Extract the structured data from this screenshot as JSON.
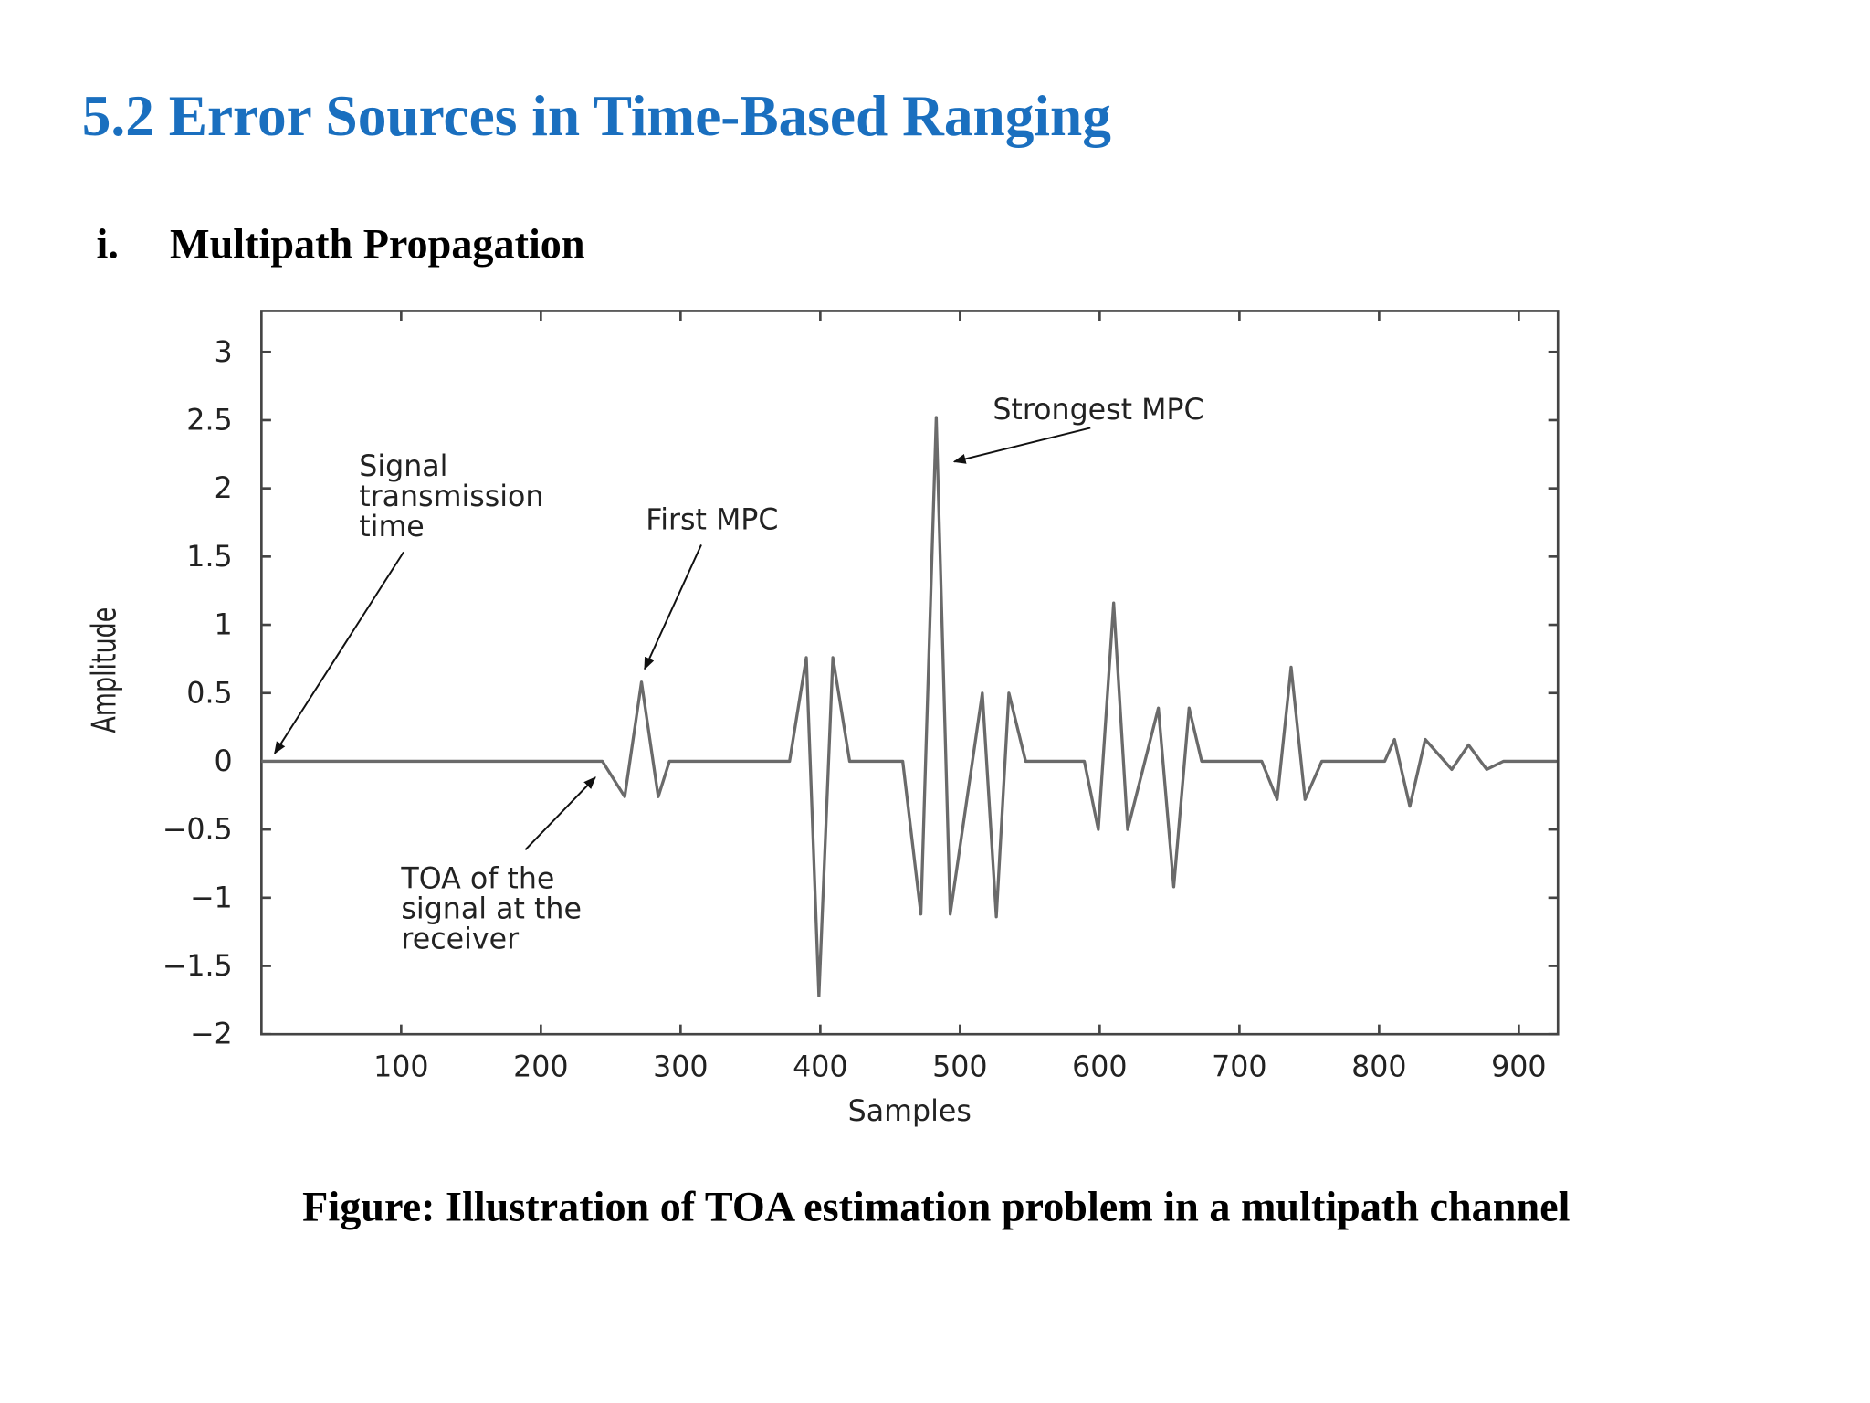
{
  "heading": "5.2 Error Sources in Time-Based Ranging",
  "subheading": {
    "number": "i.",
    "text": "Multipath Propagation"
  },
  "chart_data": {
    "type": "line",
    "ylabel": "Amplitude",
    "xlabel": "Samples",
    "x": [
      0,
      244,
      260,
      272,
      284,
      292,
      378,
      390,
      399,
      409,
      421,
      459,
      472,
      483,
      493,
      516,
      526,
      535,
      547,
      589,
      599,
      610,
      620,
      642,
      653,
      664,
      673,
      716,
      727,
      737,
      747,
      759,
      804,
      811,
      822,
      833,
      852,
      864,
      877,
      889,
      927
    ],
    "series": [
      {
        "color": "#6a6a6a",
        "values": [
          0,
          0,
          -0.26,
          0.58,
          -0.26,
          0,
          0,
          0.76,
          -1.72,
          0.76,
          0,
          0,
          -1.12,
          2.52,
          -1.12,
          0.5,
          -1.14,
          0.5,
          0,
          0,
          -0.5,
          1.16,
          -0.5,
          0.39,
          -0.92,
          0.39,
          0,
          0,
          -0.28,
          0.69,
          -0.28,
          0,
          0,
          0.16,
          -0.33,
          0.16,
          -0.06,
          0.12,
          -0.06,
          0,
          0
        ]
      }
    ],
    "xlim": [
      0,
      928
    ],
    "ylim": [
      -2,
      3.3
    ],
    "xticks": [
      100,
      200,
      300,
      400,
      500,
      600,
      700,
      800,
      900
    ],
    "yticks": [
      {
        "value": -2,
        "label": "−2"
      },
      {
        "value": -1.5,
        "label": "−1.5"
      },
      {
        "value": -1,
        "label": "−1"
      },
      {
        "value": -0.5,
        "label": "−0.5"
      },
      0,
      0.5,
      1,
      1.5,
      2,
      2.5,
      3
    ],
    "annotations": [
      {
        "lines": [
          "Signal",
          "transmission",
          "time"
        ]
      },
      {
        "lines": [
          "First MPC"
        ]
      },
      {
        "lines": [
          "Strongest MPC"
        ]
      },
      {
        "lines": [
          "TOA of the",
          "signal at the",
          "receiver"
        ]
      }
    ]
  },
  "caption": "Figure: Illustration of TOA estimation problem in a multipath channel"
}
